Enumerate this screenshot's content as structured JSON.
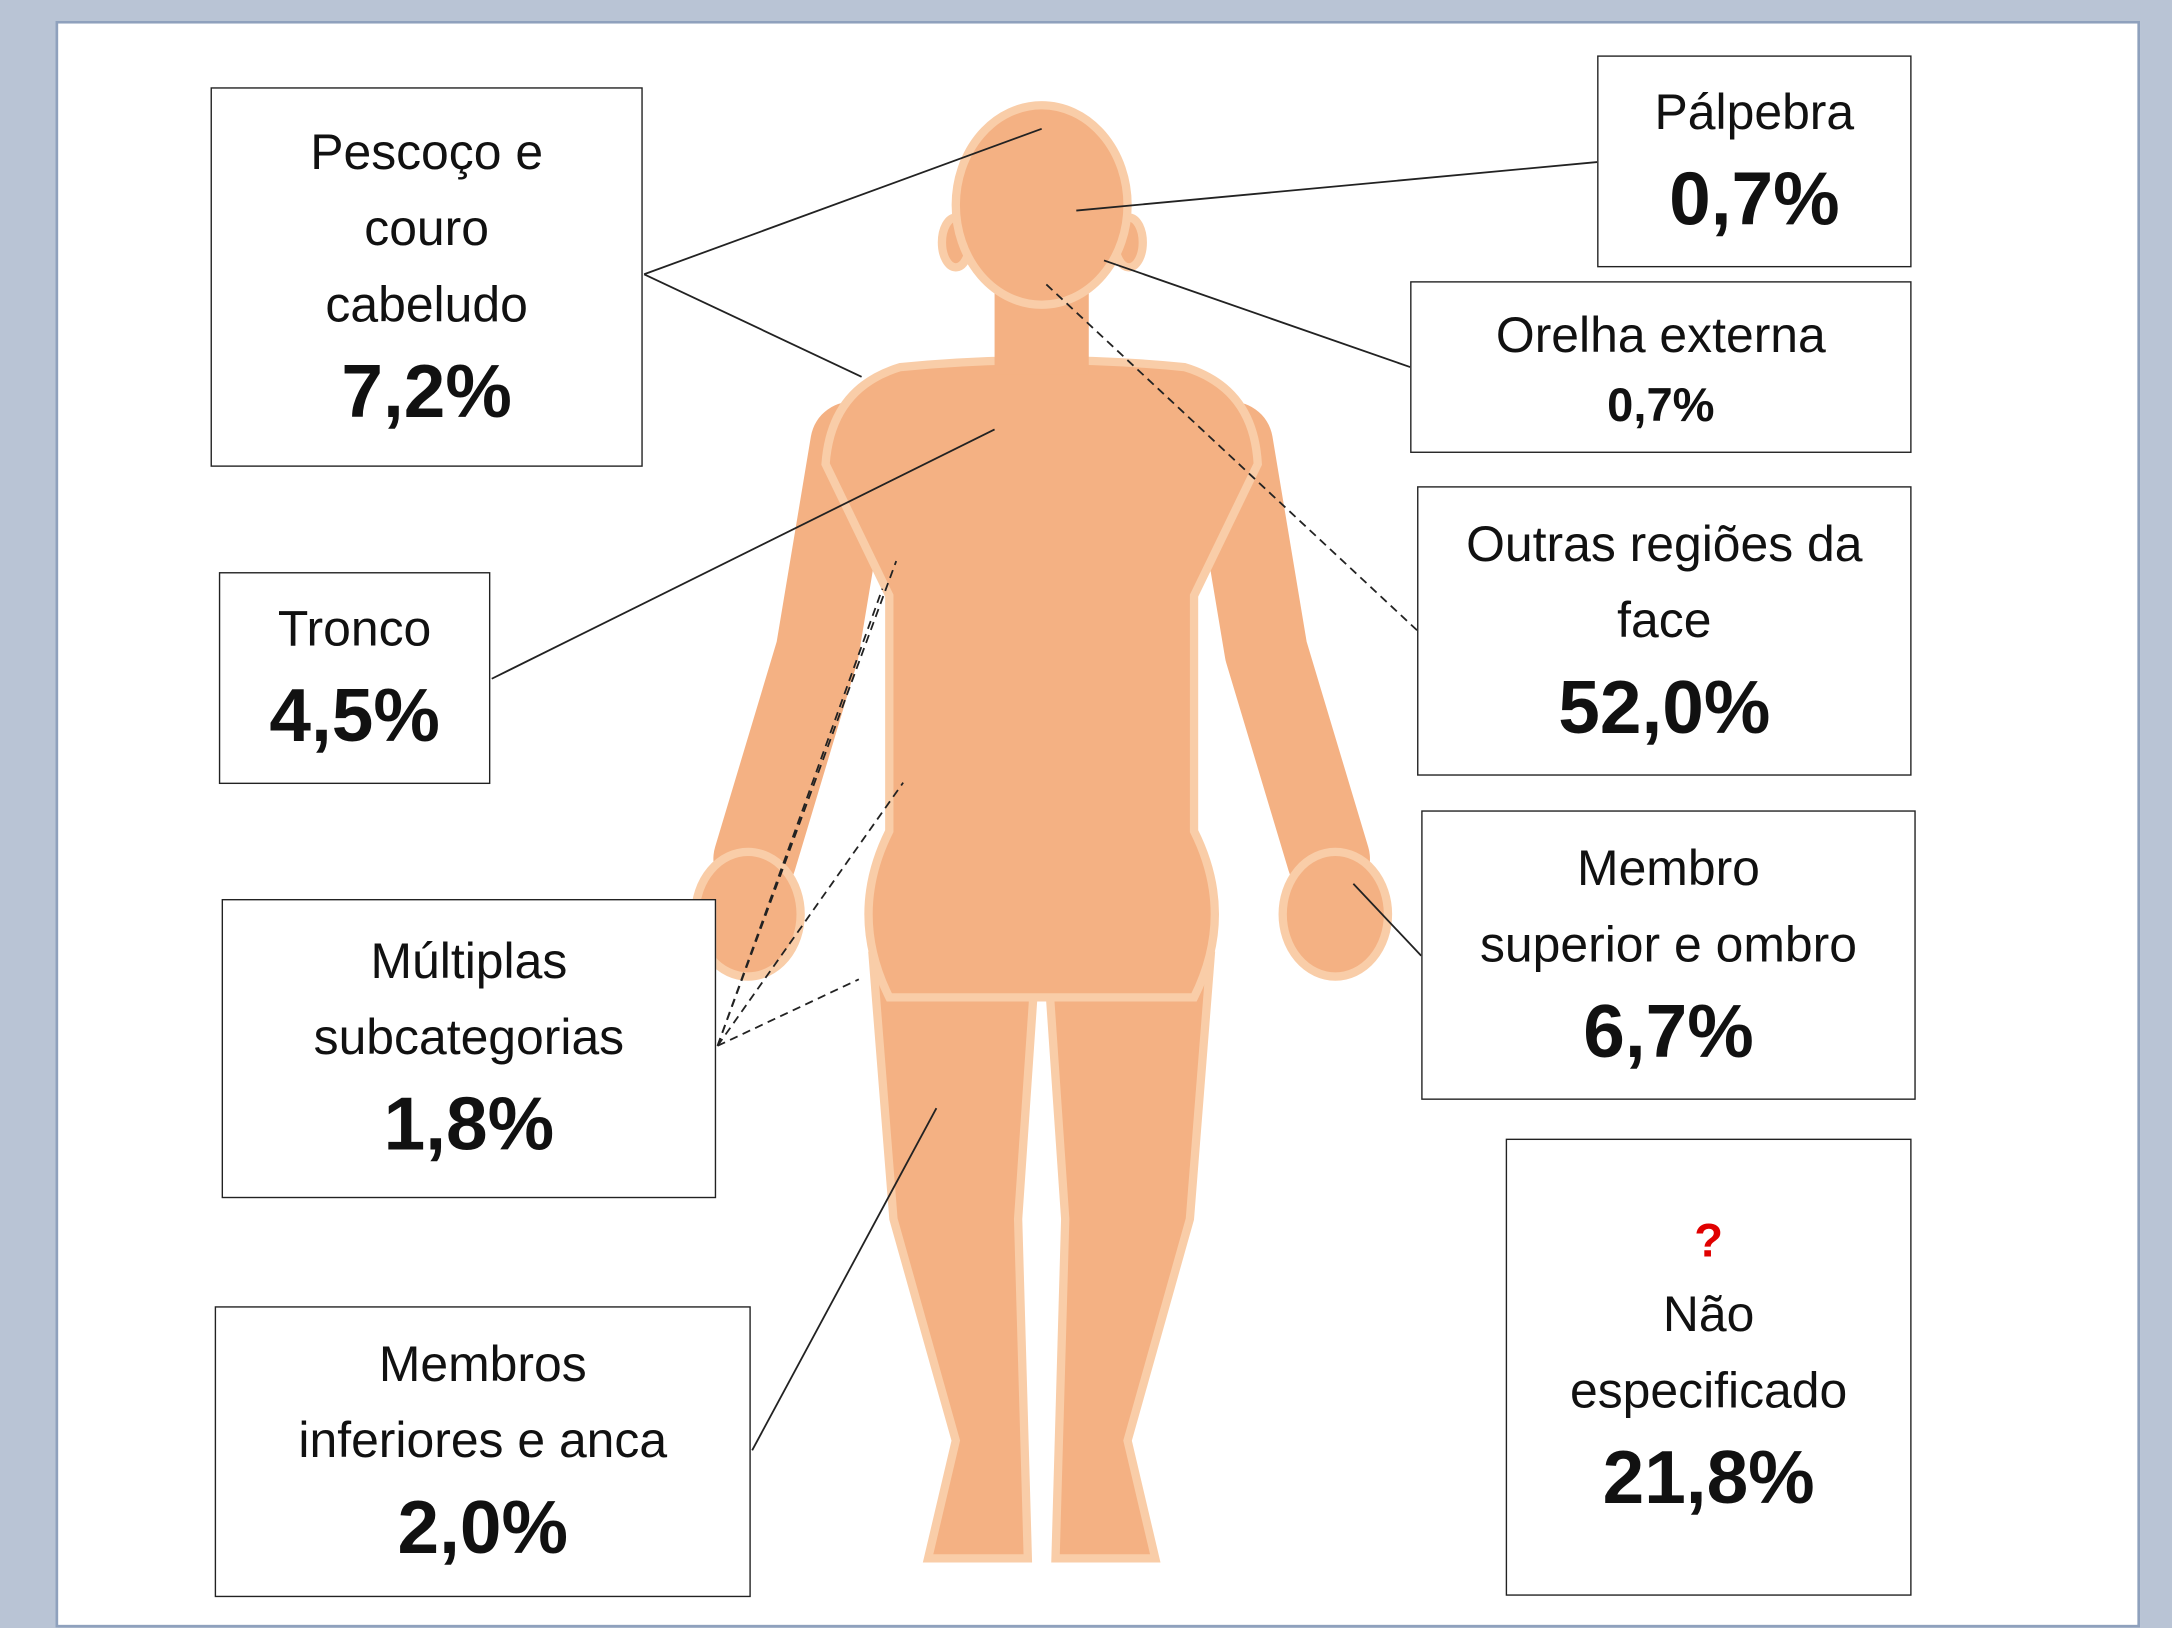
{
  "regions": [
    {
      "label": [
        "Pescoço e",
        "couro",
        "cabeludo"
      ],
      "value": "7,2%"
    },
    {
      "label": [
        "Tronco"
      ],
      "value": "4,5%"
    },
    {
      "label": [
        "Múltiplas",
        "subcategorias"
      ],
      "value": "1,8%"
    },
    {
      "label": [
        "Membros",
        "inferiores e anca"
      ],
      "value": "2,0%"
    },
    {
      "label": [
        "Pálpebra"
      ],
      "value": "0,7%"
    },
    {
      "label": [
        "Orelha externa"
      ],
      "value": "0,7%"
    },
    {
      "label": [
        "Outras regiões da",
        "face"
      ],
      "value": "52,0%"
    },
    {
      "label": [
        "Membro",
        "superior e ombro"
      ],
      "value": "6,7%"
    },
    {
      "mark": "?",
      "label": [
        "Não",
        "especificado"
      ],
      "value": "21,8%"
    }
  ]
}
